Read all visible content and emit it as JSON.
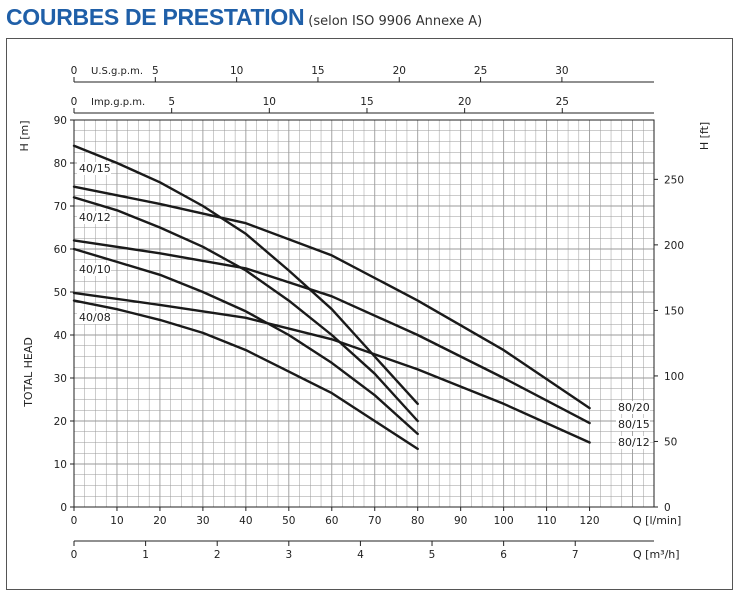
{
  "header": {
    "title": "COURBES DE PRESTATION",
    "subtitle": "(selon ISO 9906 Annexe A)"
  },
  "colors": {
    "title": "#1f5fa8",
    "grid": "#9a9a9a",
    "curve": "#1a1a1a"
  },
  "chart_data": {
    "type": "line",
    "xlabel": "Q [l/min]",
    "ylabel_left": "H [m]",
    "ylabel_left_side": "TOTAL HEAD",
    "ylabel_right": "H [ft]",
    "xlim": [
      0,
      135
    ],
    "ylim": [
      0,
      90
    ],
    "grid": true,
    "x_ticks": [
      0,
      10,
      20,
      30,
      40,
      50,
      60,
      70,
      80,
      90,
      100,
      110,
      120
    ],
    "y_ticks": [
      0,
      10,
      20,
      30,
      40,
      50,
      60,
      70,
      80,
      90
    ],
    "right_axis": {
      "label": "H [ft]",
      "ticks": [
        0,
        50,
        100,
        150,
        200,
        250
      ],
      "factor": 3.2808
    },
    "bottom_axis_m3h": {
      "label": "Q [m³/h]",
      "ticks": [
        0,
        1,
        2,
        3,
        4,
        5,
        6,
        7
      ],
      "factor": 16.6667
    },
    "top_axis_us": {
      "label": "U.S.g.p.m.",
      "ticks": [
        0,
        5,
        10,
        15,
        20,
        25,
        30
      ],
      "factor": 3.7854
    },
    "top_axis_imp": {
      "label": "Imp.g.p.m.",
      "ticks": [
        0,
        5,
        10,
        15,
        20,
        25
      ],
      "factor": 4.5461
    },
    "series": [
      {
        "name": "40/15",
        "x": [
          0,
          10,
          20,
          30,
          40,
          50,
          60,
          70,
          80
        ],
        "y": [
          84,
          80,
          75.5,
          70,
          63.5,
          55,
          46,
          35,
          24
        ]
      },
      {
        "name": "40/12",
        "x": [
          0,
          10,
          20,
          30,
          40,
          50,
          60,
          70,
          80
        ],
        "y": [
          72,
          69,
          65,
          60.5,
          55,
          48,
          40,
          31,
          20
        ]
      },
      {
        "name": "40/10",
        "x": [
          0,
          10,
          20,
          30,
          40,
          50,
          60,
          70,
          80
        ],
        "y": [
          60,
          57,
          54,
          50,
          45.5,
          40,
          33.5,
          26,
          17
        ]
      },
      {
        "name": "40/08",
        "x": [
          0,
          10,
          20,
          30,
          40,
          50,
          60,
          70,
          80
        ],
        "y": [
          48,
          46,
          43.5,
          40.5,
          36.5,
          31.5,
          26.5,
          20,
          13.5
        ]
      },
      {
        "name": "80/20",
        "x": [
          0,
          20,
          40,
          60,
          80,
          100,
          120
        ],
        "y": [
          74.5,
          70.5,
          66,
          58.5,
          48,
          36.5,
          23
        ]
      },
      {
        "name": "80/15",
        "x": [
          0,
          20,
          40,
          60,
          80,
          100,
          120
        ],
        "y": [
          62,
          59,
          55.5,
          49,
          40,
          30,
          19.5
        ]
      },
      {
        "name": "80/12",
        "x": [
          0,
          20,
          40,
          60,
          80,
          100,
          120
        ],
        "y": [
          49.8,
          47,
          44,
          39,
          32,
          24,
          15
        ]
      }
    ]
  }
}
